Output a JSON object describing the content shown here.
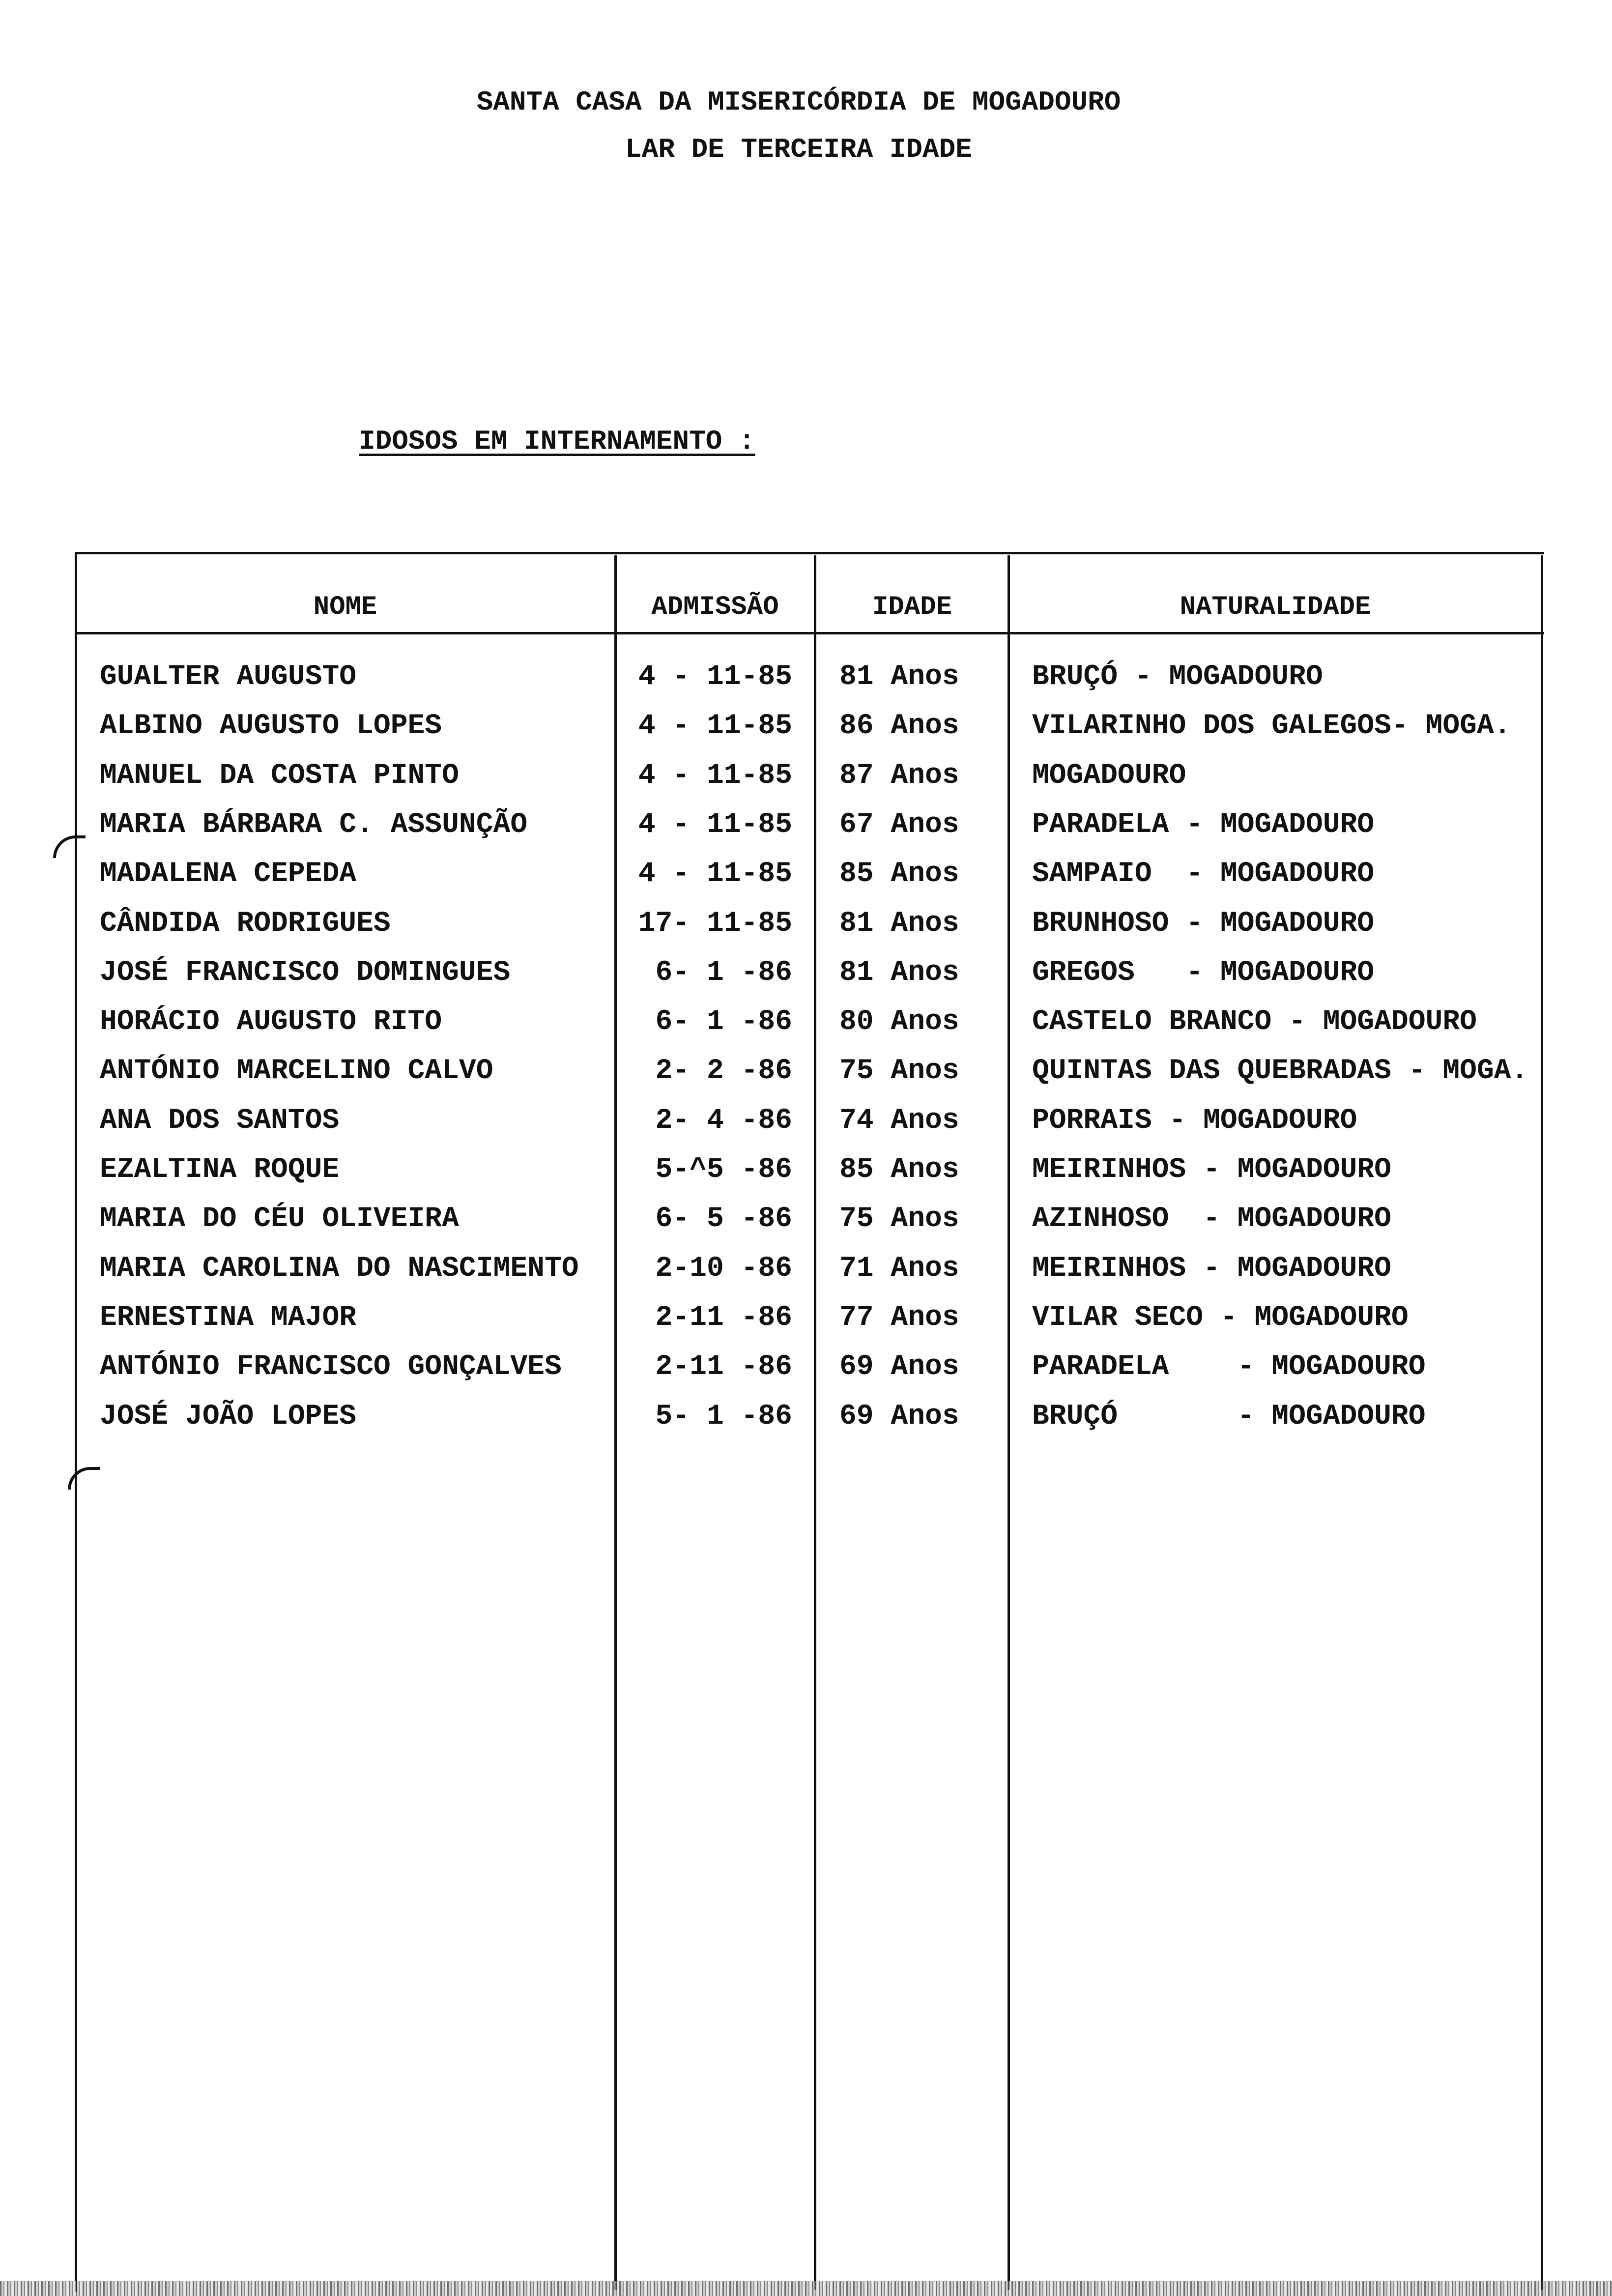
{
  "header": {
    "institution": "SANTA CASA DA MISERICÓRDIA DE MOGADOURO",
    "department": "LAR DE TERCEIRA IDADE"
  },
  "section_title": "IDOSOS EM INTERNAMENTO :",
  "table": {
    "columns": [
      "NOME",
      "ADMISSÃO",
      "IDADE",
      "NATURALIDADE"
    ],
    "rows": [
      {
        "nome": "GUALTER AUGUSTO",
        "admissao": "4 - 11-85",
        "idade": "81 Anos",
        "naturalidade": "BRUÇÓ - MOGADOURO"
      },
      {
        "nome": "ALBINO AUGUSTO LOPES",
        "admissao": "4 - 11-85",
        "idade": "86 Anos",
        "naturalidade": "VILARINHO DOS GALEGOS- MOGA."
      },
      {
        "nome": "MANUEL DA COSTA PINTO",
        "admissao": "4 - 11-85",
        "idade": "87 Anos",
        "naturalidade": "MOGADOURO"
      },
      {
        "nome": "MARIA BÁRBARA C. ASSUNÇÃO",
        "admissao": "4 - 11-85",
        "idade": "67 Anos",
        "naturalidade": "PARADELA - MOGADOURO"
      },
      {
        "nome": "MADALENA CEPEDA",
        "admissao": "4 - 11-85",
        "idade": "85 Anos",
        "naturalidade": "SAMPAIO  - MOGADOURO"
      },
      {
        "nome": "CÂNDIDA RODRIGUES",
        "admissao": "17- 11-85",
        "idade": "81 Anos",
        "naturalidade": "BRUNHOSO - MOGADOURO"
      },
      {
        "nome": "JOSÉ FRANCISCO DOMINGUES",
        "admissao": "6- 1 -86",
        "idade": "81 Anos",
        "naturalidade": "GREGOS   - MOGADOURO"
      },
      {
        "nome": "HORÁCIO AUGUSTO RITO",
        "admissao": "6- 1 -86",
        "idade": "80 Anos",
        "naturalidade": "CASTELO BRANCO - MOGADOURO"
      },
      {
        "nome": "ANTÓNIO MARCELINO CALVO",
        "admissao": "2- 2 -86",
        "idade": "75 Anos",
        "naturalidade": "QUINTAS DAS QUEBRADAS - MOGA."
      },
      {
        "nome": "ANA DOS SANTOS",
        "admissao": "2- 4 -86",
        "idade": "74 Anos",
        "naturalidade": "PORRAIS - MOGADOURO"
      },
      {
        "nome": "EZALTINA ROQUE",
        "admissao": "5-^5 -86",
        "idade": "85 Anos",
        "naturalidade": "MEIRINHOS - MOGADOURO"
      },
      {
        "nome": "MARIA DO CÉU OLIVEIRA",
        "admissao": "6- 5 -86",
        "idade": "75 Anos",
        "naturalidade": "AZINHOSO  - MOGADOURO"
      },
      {
        "nome": "MARIA CAROLINA DO NASCIMENTO",
        "admissao": "2-10 -86",
        "idade": "71 Anos",
        "naturalidade": "MEIRINHOS - MOGADOURO"
      },
      {
        "nome": "ERNESTINA MAJOR",
        "admissao": "2-11 -86",
        "idade": "77 Anos",
        "naturalidade": "VILAR SECO - MOGADOURO"
      },
      {
        "nome": "ANTÓNIO FRANCISCO GONÇALVES",
        "admissao": "2-11 -86",
        "idade": "69 Anos",
        "naturalidade": "PARADELA    - MOGADOURO"
      },
      {
        "nome": "JOSÉ JOÃO LOPES",
        "admissao": "5- 1 -86",
        "idade": "69 Anos",
        "naturalidade": "BRUÇÓ       - MOGADOURO"
      }
    ]
  }
}
